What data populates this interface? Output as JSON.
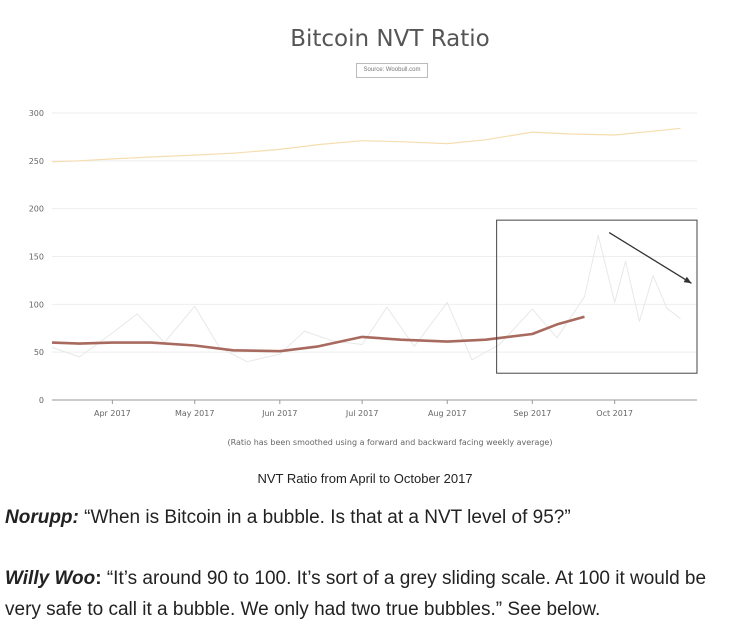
{
  "chart_data": {
    "type": "line",
    "title": "Bitcoin NVT Ratio",
    "subtitle": "Source: Woobull.com",
    "footnote": "(Ratio has been smoothed using a forward and backward facing weekly average)",
    "ylim": [
      0,
      300
    ],
    "yticks": [
      0,
      50,
      100,
      150,
      200,
      250,
      300
    ],
    "x_ticks": [
      "Apr 2017",
      "May 2017",
      "Jun 2017",
      "Jul 2017",
      "Aug 2017",
      "Sep 2017",
      "Oct 2017"
    ],
    "x_tick_dates": [
      "2017-04-01",
      "2017-05-01",
      "2017-06-01",
      "2017-07-01",
      "2017-08-01",
      "2017-09-01",
      "2017-10-01"
    ],
    "grid": true,
    "series": [
      {
        "name": "",
        "color": "#f6ddb0",
        "x": [
          "2017-03-10",
          "2017-03-20",
          "2017-04-01",
          "2017-04-15",
          "2017-05-01",
          "2017-05-15",
          "2017-06-01",
          "2017-06-15",
          "2017-07-01",
          "2017-07-15",
          "2017-08-01",
          "2017-08-15",
          "2017-09-01",
          "2017-09-15",
          "2017-10-01",
          "2017-10-15",
          "2017-10-25"
        ],
        "values": [
          249,
          250,
          252,
          254,
          256,
          258,
          262,
          267,
          271,
          270,
          268,
          272,
          280,
          278,
          277,
          281,
          284
        ]
      },
      {
        "name": "",
        "color": "#a86a5e",
        "x": [
          "2017-03-10",
          "2017-03-20",
          "2017-04-01",
          "2017-04-15",
          "2017-05-01",
          "2017-05-15",
          "2017-06-01",
          "2017-06-15",
          "2017-07-01",
          "2017-07-15",
          "2017-08-01",
          "2017-08-15",
          "2017-09-01",
          "2017-09-10",
          "2017-09-20"
        ],
        "values": [
          60,
          59,
          60,
          60,
          57,
          52,
          51,
          56,
          66,
          63,
          61,
          63,
          69,
          79,
          87
        ]
      },
      {
        "name": "",
        "color": "#e8e8e8",
        "x": [
          "2017-03-10",
          "2017-03-20",
          "2017-04-01",
          "2017-04-10",
          "2017-04-20",
          "2017-05-01",
          "2017-05-10",
          "2017-05-20",
          "2017-06-01",
          "2017-06-10",
          "2017-06-20",
          "2017-07-01",
          "2017-07-10",
          "2017-07-20",
          "2017-08-01",
          "2017-08-10",
          "2017-08-20",
          "2017-09-01",
          "2017-09-10",
          "2017-09-20",
          "2017-09-25",
          "2017-10-01",
          "2017-10-05",
          "2017-10-10",
          "2017-10-15",
          "2017-10-20",
          "2017-10-25"
        ],
        "values": [
          55,
          45,
          70,
          90,
          60,
          98,
          55,
          40,
          48,
          72,
          62,
          58,
          97,
          56,
          102,
          42,
          58,
          95,
          65,
          108,
          172,
          102,
          145,
          82,
          130,
          96,
          85
        ]
      }
    ]
  },
  "annotation": {
    "box": [
      "2017-08-19",
      "2017-10-31",
      28,
      188
    ],
    "arrow": [
      "2017-09-29",
      175,
      "2017-10-29",
      122
    ]
  },
  "caption": "NVT Ratio from April to October 2017",
  "quotes": [
    {
      "speaker": "Norupp:",
      "text": " “When is Bitcoin in a bubble. Is that at a NVT level of 95?”"
    },
    {
      "speaker": "Willy Woo",
      "colon": ":",
      "text": " “It’s around 90 to 100. It’s sort of a grey sliding scale. At 100 it would be very safe to call it a bubble. We only had two true bubbles.” See below."
    }
  ]
}
